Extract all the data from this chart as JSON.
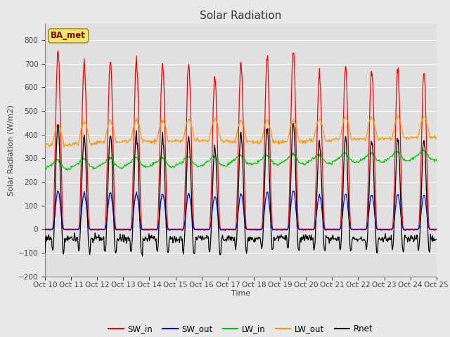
{
  "title": "Solar Radiation",
  "ylabel": "Solar Radiation (W/m2)",
  "xlabel": "Time",
  "ylim": [
    -200,
    870
  ],
  "yticks": [
    -200,
    -100,
    0,
    100,
    200,
    300,
    400,
    500,
    600,
    700,
    800
  ],
  "x_labels": [
    "Oct 10",
    "Oct 11",
    "Oct 12",
    "Oct 13",
    "Oct 14",
    "Oct 15",
    "Oct 16",
    "Oct 17",
    "Oct 18",
    "Oct 19",
    "Oct 20",
    "Oct 21",
    "Oct 22",
    "Oct 23",
    "Oct 24",
    "Oct 25"
  ],
  "station_label": "BA_met",
  "n_days": 15,
  "colors": {
    "SW_in": "#ff0000",
    "SW_out": "#0000ee",
    "LW_in": "#00cc00",
    "LW_out": "#ff9900",
    "Rnet": "#000000"
  },
  "fig_bg": "#e8e8e8",
  "plot_bg": "#e0e0e0",
  "grid_color": "#ffffff",
  "SW_in_peaks": [
    760,
    700,
    715,
    715,
    705,
    695,
    645,
    700,
    720,
    760,
    655,
    690,
    685,
    675,
    660
  ]
}
